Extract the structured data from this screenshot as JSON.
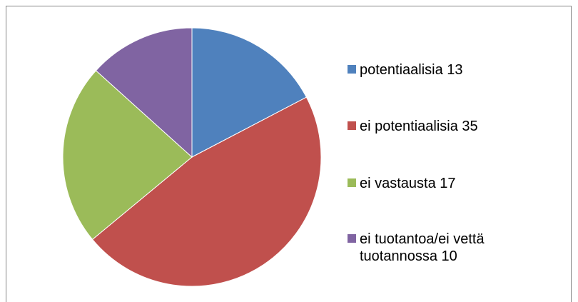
{
  "chart_data": {
    "type": "pie",
    "categories": [
      "potentiaalisia 13",
      "ei potentiaalisia 35",
      "ei vastausta 17",
      "ei tuotantoa/ei vettä tuotannossa 10"
    ],
    "values": [
      13,
      35,
      17,
      10
    ],
    "colors": [
      "#4f81bd",
      "#c0504d",
      "#9bbb59",
      "#8064a2"
    ],
    "legend": "right"
  }
}
